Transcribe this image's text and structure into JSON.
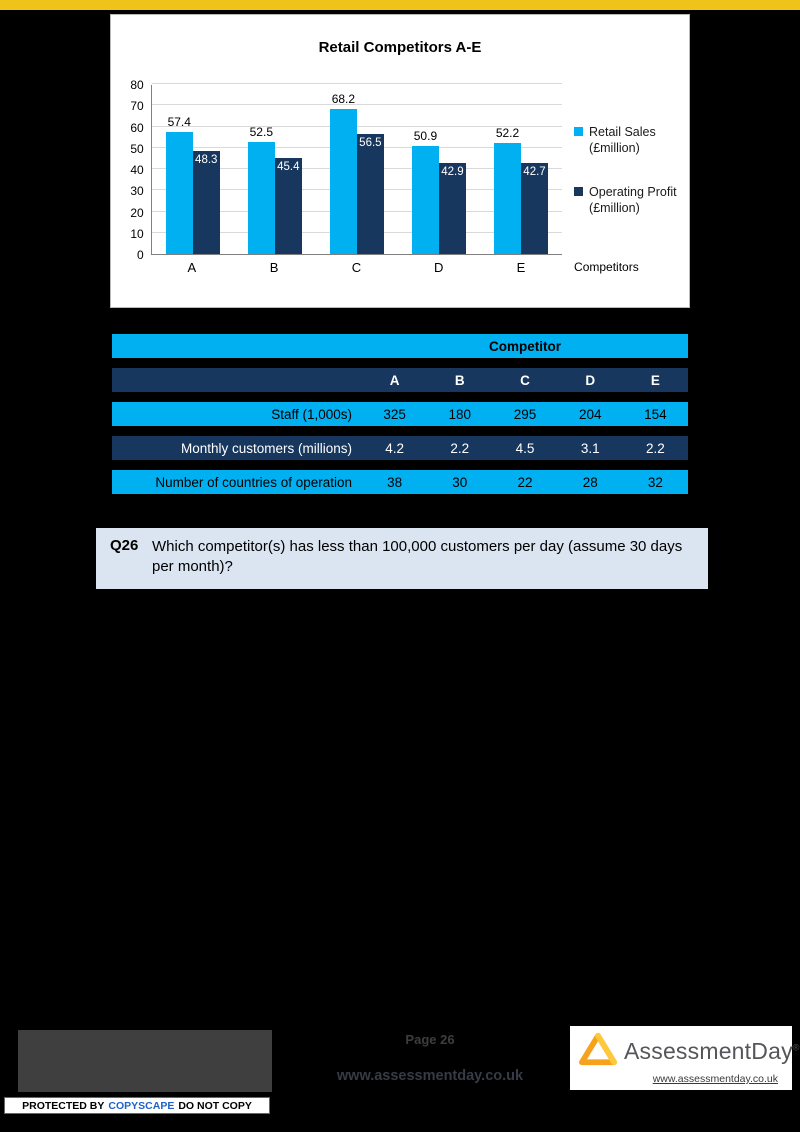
{
  "colors": {
    "topbar": "#EFC319",
    "series_light": "#00B0F0",
    "series_dark": "#17375E",
    "question_bg": "#DBE5F1"
  },
  "chart_data": {
    "type": "bar",
    "title": "Retail Competitors A-E",
    "categories": [
      "A",
      "B",
      "C",
      "D",
      "E"
    ],
    "series": [
      {
        "name": "Retail Sales (£million)",
        "label_lines": [
          "Retail Sales",
          "(£million)"
        ],
        "color": "#00B0F0",
        "label_position": "above",
        "values": [
          57.4,
          52.5,
          68.2,
          50.9,
          52.2
        ]
      },
      {
        "name": "Operating Profit (£million)",
        "label_lines": [
          "Operating Profit",
          "(£million)"
        ],
        "color": "#17375E",
        "label_position": "inside",
        "values": [
          48.3,
          45.4,
          56.5,
          42.9,
          42.7
        ]
      }
    ],
    "ylim": [
      0,
      80
    ],
    "yticks": [
      0,
      10,
      20,
      30,
      40,
      50,
      60,
      70,
      80
    ],
    "xlabel": "Competitors",
    "legend_position": "right",
    "grid": true
  },
  "table": {
    "header": "Competitor",
    "columns": [
      "A",
      "B",
      "C",
      "D",
      "E"
    ],
    "rows": [
      {
        "label": "Staff (1,000s)",
        "values": [
          "325",
          "180",
          "295",
          "204",
          "154"
        ]
      },
      {
        "label": "Monthly customers (millions)",
        "values": [
          "4.2",
          "2.2",
          "4.5",
          "3.1",
          "2.2"
        ]
      },
      {
        "label": "Number of countries of operation",
        "values": [
          "38",
          "30",
          "22",
          "28",
          "32"
        ]
      }
    ]
  },
  "question": {
    "number": "Q26",
    "text": "Which competitor(s) has less than 100,000 customers per day (assume 30 days per month)?"
  },
  "footer": {
    "page_label": "Page 26",
    "center_url": "www.assessmentday.co.uk",
    "brand": "AssessmentDay",
    "brand_mark": "®",
    "brand_url": "www.assessmentday.co.uk",
    "copyscape": {
      "protected_by": "PROTECTED BY",
      "brand": "COPYSCAPE",
      "do_not_copy": "DO NOT COPY"
    }
  }
}
